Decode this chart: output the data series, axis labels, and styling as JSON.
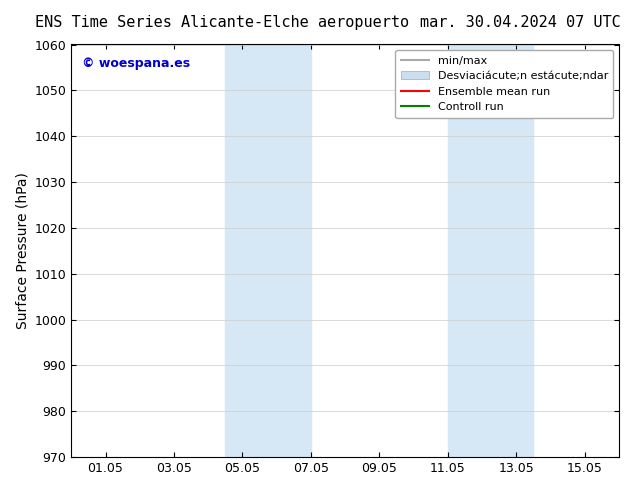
{
  "title_left": "ENS Time Series Alicante-Elche aeropuerto",
  "title_right": "mar. 30.04.2024 07 UTC",
  "ylabel": "Surface Pressure (hPa)",
  "ylim": [
    970,
    1060
  ],
  "yticks": [
    970,
    980,
    990,
    1000,
    1010,
    1020,
    1030,
    1040,
    1050,
    1060
  ],
  "xtick_labels": [
    "01.05",
    "03.05",
    "05.05",
    "07.05",
    "09.05",
    "11.05",
    "13.05",
    "15.05"
  ],
  "xtick_positions": [
    0,
    2,
    4,
    6,
    8,
    10,
    12,
    14
  ],
  "xmin": -1,
  "xmax": 15,
  "shaded_bands": [
    {
      "xstart": 3.5,
      "xend": 6.0,
      "color": "#d6e8f5"
    },
    {
      "xstart": 10.0,
      "xend": 12.5,
      "color": "#d6e8f5"
    }
  ],
  "watermark_text": "© woespana.es",
  "watermark_color": "#0000cc",
  "legend_items": [
    {
      "label": "min/max",
      "color": "#aaaaaa",
      "lw": 1.5,
      "ls": "-"
    },
    {
      "label": "Desviaciácute;n estácute;ndar",
      "color": "#ccddee",
      "lw": 8,
      "ls": "-"
    },
    {
      "label": "Ensemble mean run",
      "color": "#ff0000",
      "lw": 1.5,
      "ls": "-"
    },
    {
      "label": "Controll run",
      "color": "#008000",
      "lw": 1.5,
      "ls": "-"
    }
  ],
  "background_color": "#ffffff",
  "grid_color": "#cccccc",
  "title_fontsize": 11,
  "tick_fontsize": 9,
  "ylabel_fontsize": 10
}
